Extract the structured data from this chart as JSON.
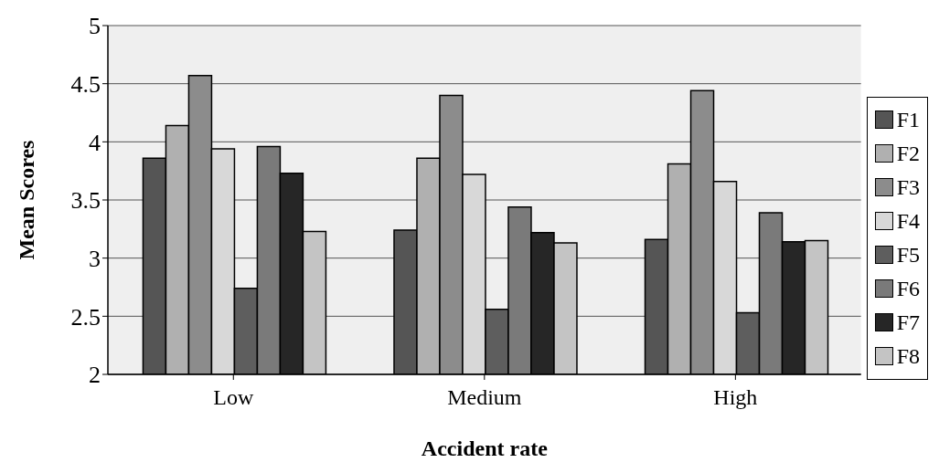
{
  "chart_data": {
    "type": "bar",
    "xlabel": "Accident rate",
    "ylabel": "Mean Scores",
    "categories": [
      "Low",
      "Medium",
      "High"
    ],
    "series": [
      {
        "name": "F1",
        "color": "#555555",
        "values": [
          3.86,
          3.24,
          3.16
        ]
      },
      {
        "name": "F2",
        "color": "#b0b0b0",
        "values": [
          4.14,
          3.86,
          3.81
        ]
      },
      {
        "name": "F3",
        "color": "#8c8c8c",
        "values": [
          4.57,
          4.4,
          4.44
        ]
      },
      {
        "name": "F4",
        "color": "#d8d8d8",
        "values": [
          3.94,
          3.72,
          3.66
        ]
      },
      {
        "name": "F5",
        "color": "#5e5e5e",
        "values": [
          2.74,
          2.56,
          2.53
        ]
      },
      {
        "name": "F6",
        "color": "#7a7a7a",
        "values": [
          3.96,
          3.44,
          3.39
        ]
      },
      {
        "name": "F7",
        "color": "#262626",
        "values": [
          3.73,
          3.22,
          3.14
        ]
      },
      {
        "name": "F8",
        "color": "#c4c4c4",
        "values": [
          3.23,
          3.13,
          3.15
        ]
      }
    ],
    "ylim": [
      2,
      5
    ],
    "yticks": [
      2,
      2.5,
      3,
      3.5,
      4,
      4.5,
      5
    ],
    "grid": "y",
    "legend": "right"
  }
}
